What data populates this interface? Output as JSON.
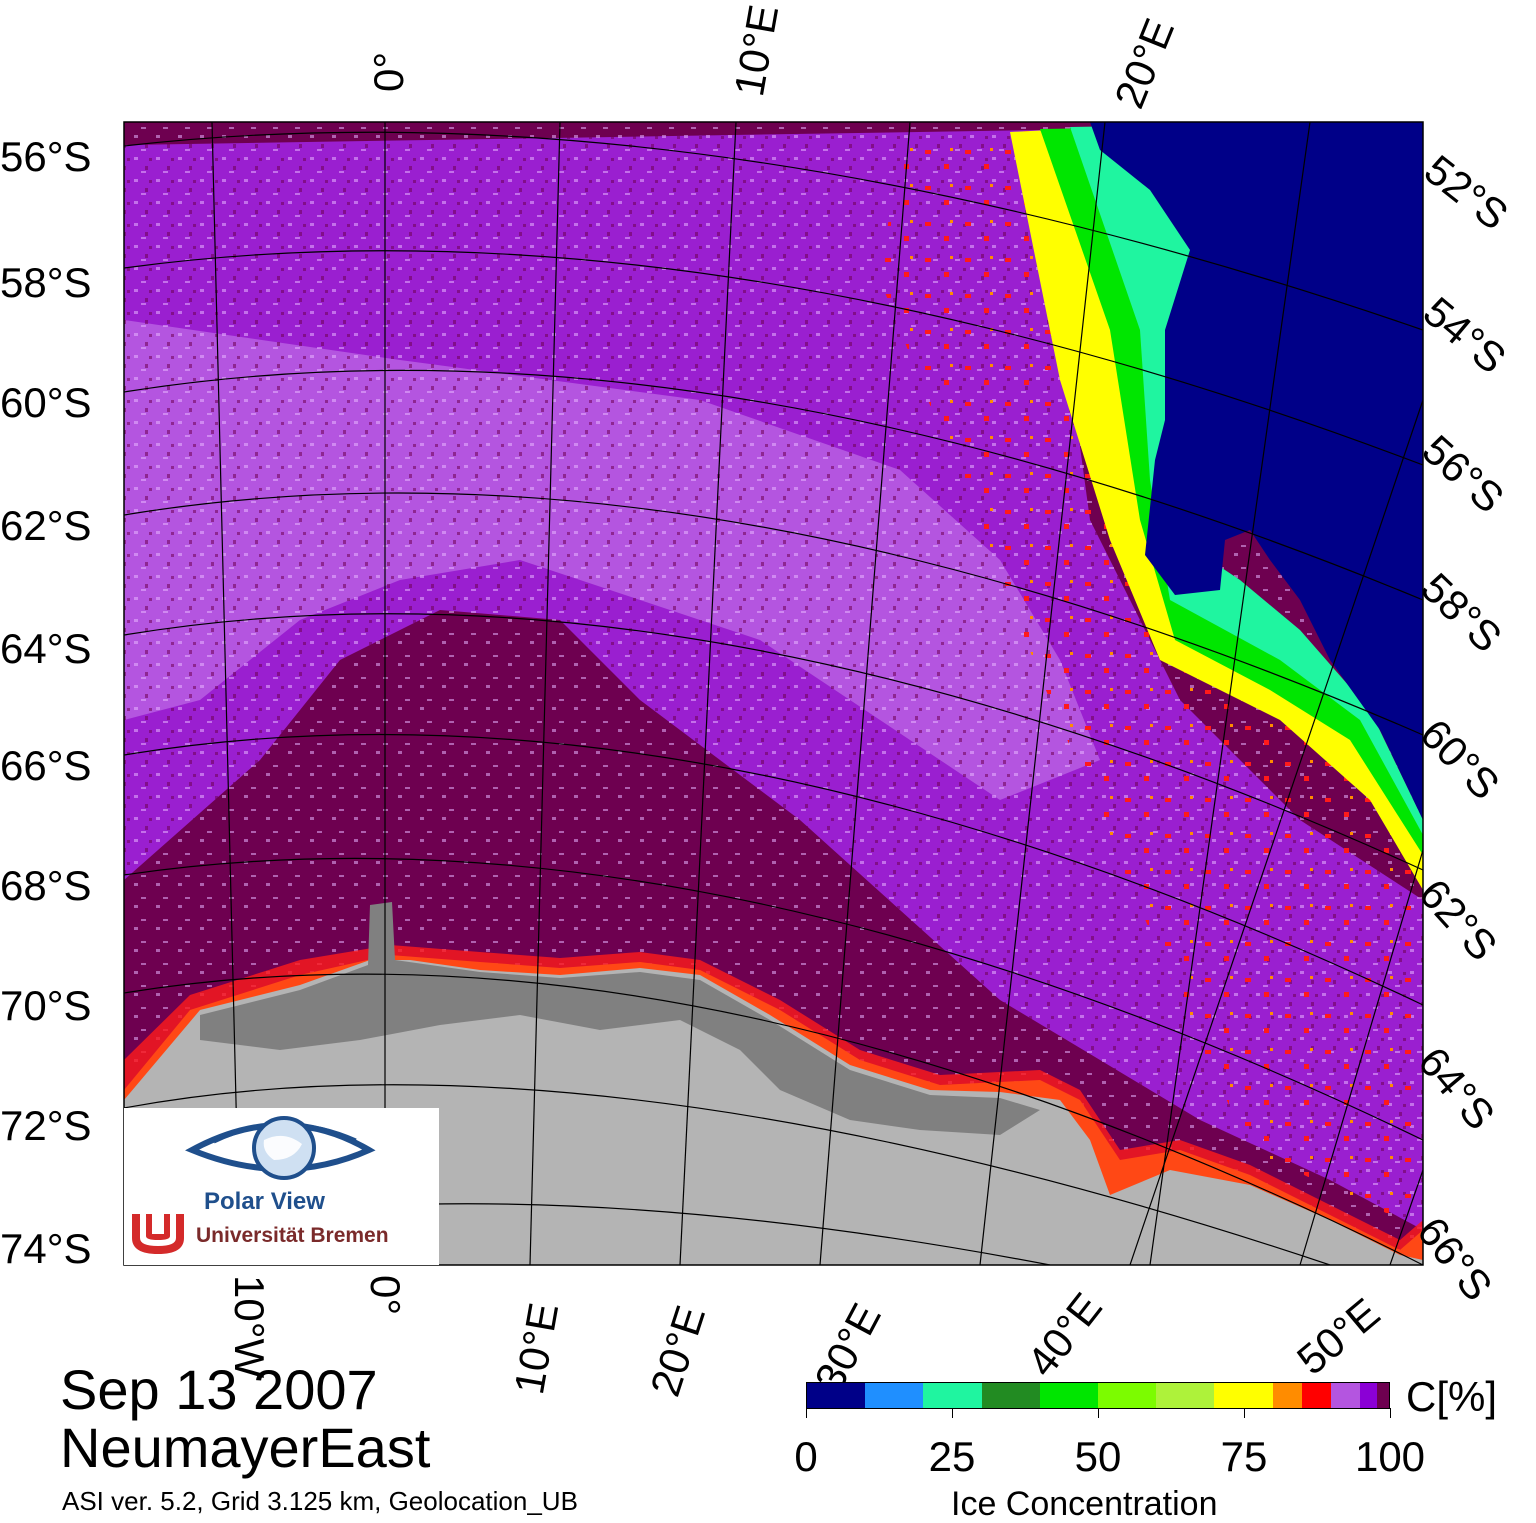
{
  "header": {
    "date": "Sep 13 2007",
    "region": "NeumayerEast",
    "algorithm": "ASI ver. 5.2,  Grid 3.125 km, Geolocation_UB"
  },
  "map": {
    "left_lat_labels": [
      "56°S",
      "58°S",
      "60°S",
      "62°S",
      "64°S",
      "66°S",
      "68°S",
      "70°S",
      "72°S",
      "74°S"
    ],
    "right_lat_labels": [
      "52°S",
      "54°S",
      "56°S",
      "58°S",
      "60°S",
      "62°S",
      "64°S",
      "66°S"
    ],
    "top_lon_labels": [
      "0°",
      "10°E",
      "20°E"
    ],
    "bottom_lon_labels": [
      "10°W",
      "0°",
      "10°E",
      "20°E",
      "30°E",
      "40°E",
      "50°E"
    ],
    "colors": {
      "open_water": "#000088",
      "full_ice": "#6e0050",
      "high_ice": "#9a1fd0",
      "mid_ice": "#b455e0",
      "land": "#b4b4b4",
      "ice_shelf": "#808080",
      "ice_edge_red": "#ff1a1a",
      "ice_edge_yellow": "#ffff00",
      "ice_edge_green": "#7cfc00"
    }
  },
  "logo": {
    "name": "Polar View",
    "university": "Universität Bremen"
  },
  "colorbar": {
    "unit": "C[%]",
    "title": "Ice Concentration",
    "ticks": [
      "0",
      "25",
      "50",
      "75",
      "100"
    ],
    "colors": [
      "#000088",
      "#1f8fff",
      "#1ff5a0",
      "#228b22",
      "#00e600",
      "#7cfc00",
      "#aef23a",
      "#ffff00",
      "#ff8c00",
      "#ff0000",
      "#b455e0",
      "#8b00d6",
      "#6e0050"
    ],
    "stops": [
      0,
      10,
      20,
      30,
      40,
      50,
      60,
      70,
      80,
      85,
      90,
      95,
      98,
      100
    ]
  }
}
